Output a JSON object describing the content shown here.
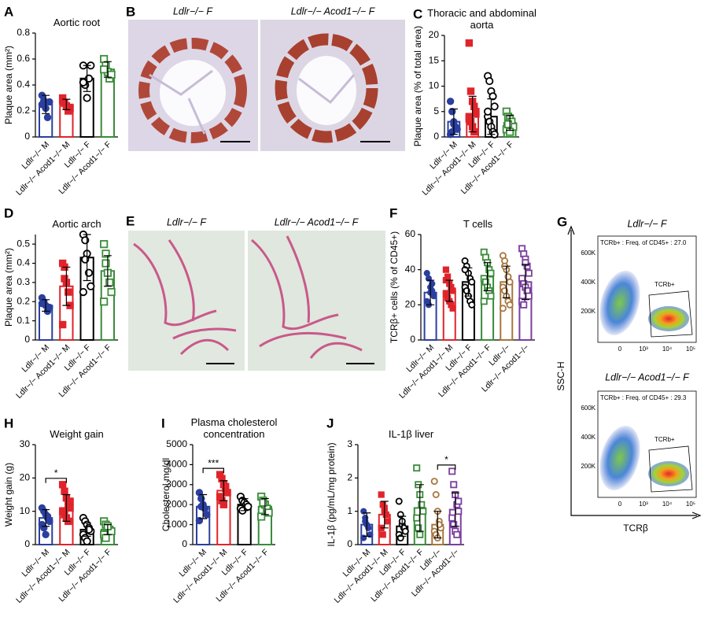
{
  "chart_data": [
    {
      "type": "bar",
      "panel": "A",
      "title": "Aortic root",
      "ylabel": "Plaque area (mm²)",
      "categories": [
        "Ldlr−/− M",
        "Ldlr−/− Acod1−/− M",
        "Ldlr−/− F",
        "Ldlr−/− Acod1−/− F"
      ],
      "colors": [
        "#2b3f9e",
        "#e0242b",
        "#000000",
        "#3a8c3a"
      ],
      "markers": [
        "filled-circle",
        "filled-square",
        "open-circle",
        "open-square"
      ],
      "values": [
        0.25,
        0.25,
        0.45,
        0.52
      ],
      "errors": [
        0.07,
        0.04,
        0.1,
        0.06
      ],
      "points": [
        [
          0.32,
          0.28,
          0.22,
          0.15,
          0.27,
          0.25
        ],
        [
          0.3,
          0.26,
          0.24,
          0.2,
          0.22,
          0.28
        ],
        [
          0.55,
          0.4,
          0.3,
          0.45,
          0.55,
          0.42
        ],
        [
          0.6,
          0.55,
          0.5,
          0.45,
          0.48,
          0.52
        ]
      ],
      "ylim": [
        0,
        0.8
      ],
      "yticks": [
        0.0,
        0.2,
        0.4,
        0.6,
        0.8
      ]
    },
    {
      "type": "bar",
      "panel": "C",
      "title": "Thoracic and abdominal aorta",
      "ylabel": "Plaque area (% of total area)",
      "categories": [
        "Ldlr−/− M",
        "Ldlr−/− Acod1−/− M",
        "Ldlr−/− F",
        "Ldlr−/− Acod1−/− F"
      ],
      "colors": [
        "#2b3f9e",
        "#e0242b",
        "#000000",
        "#3a8c3a"
      ],
      "markers": [
        "filled-circle",
        "filled-square",
        "open-circle",
        "open-square"
      ],
      "values": [
        3,
        4.5,
        4,
        2.8
      ],
      "errors": [
        2.5,
        3.5,
        3.5,
        1.5
      ],
      "points": [
        [
          7,
          5,
          3,
          2,
          1.5,
          0.5,
          1,
          2.5
        ],
        [
          18.5,
          9,
          7,
          6,
          5,
          4,
          3,
          2,
          1,
          4.5,
          3.5
        ],
        [
          12,
          11,
          9,
          8,
          6,
          4,
          3,
          2,
          1,
          0.5,
          5
        ],
        [
          5,
          4,
          3.5,
          3,
          2,
          1.5,
          2.5,
          1
        ]
      ],
      "ylim": [
        0,
        20
      ],
      "yticks": [
        0,
        5,
        10,
        15,
        20
      ]
    },
    {
      "type": "bar",
      "panel": "D",
      "title": "Aortic arch",
      "ylabel": "Plaque area (mm²)",
      "categories": [
        "Ldlr−/− M",
        "Ldlr−/− Acod1−/− M",
        "Ldlr−/− F",
        "Ldlr−/− Acod1−/− F"
      ],
      "colors": [
        "#2b3f9e",
        "#e0242b",
        "#000000",
        "#3a8c3a"
      ],
      "markers": [
        "filled-circle",
        "filled-square",
        "open-circle",
        "open-square"
      ],
      "values": [
        0.18,
        0.28,
        0.43,
        0.36
      ],
      "errors": [
        0.03,
        0.1,
        0.12,
        0.08
      ],
      "points": [
        [
          0.22,
          0.2,
          0.18,
          0.15,
          0.17,
          0.19
        ],
        [
          0.4,
          0.38,
          0.3,
          0.25,
          0.18,
          0.08,
          0.32
        ],
        [
          0.55,
          0.52,
          0.45,
          0.35,
          0.28,
          0.25,
          0.42
        ],
        [
          0.5,
          0.45,
          0.35,
          0.3,
          0.25,
          0.2,
          0.4
        ]
      ],
      "ylim": [
        0,
        0.55
      ],
      "yticks": [
        0.0,
        0.1,
        0.2,
        0.3,
        0.4,
        0.5
      ]
    },
    {
      "type": "bar",
      "panel": "F",
      "title": "T cells",
      "ylabel": "TCRβ+ cells (% of CD45+)",
      "categories": [
        "Ldlr−/− M",
        "Ldlr−/− Acod1−/− M",
        "Ldlr−/− F",
        "Ldlr−/− Acod1−/− F",
        "Ldlr−/−",
        "Ldlr−/− Acod1−/−"
      ],
      "colors": [
        "#2b3f9e",
        "#e0242b",
        "#000000",
        "#3a8c3a",
        "#a8763e",
        "#7b3fa0"
      ],
      "markers": [
        "filled-circle",
        "filled-square",
        "open-circle",
        "open-square",
        "open-circle",
        "open-square"
      ],
      "values": [
        27,
        28,
        33,
        36,
        33,
        33
      ],
      "errors": [
        7,
        6,
        8,
        8,
        9,
        10
      ],
      "points": [
        [
          38,
          35,
          30,
          28,
          25,
          22,
          20,
          27,
          32
        ],
        [
          40,
          36,
          32,
          30,
          28,
          26,
          24,
          22,
          20,
          18,
          34
        ],
        [
          45,
          42,
          38,
          35,
          33,
          30,
          28,
          25,
          22,
          20,
          40
        ],
        [
          50,
          47,
          44,
          40,
          38,
          35,
          33,
          30,
          28,
          25,
          22
        ],
        [
          48,
          45,
          40,
          36,
          33,
          30,
          28,
          25,
          22,
          20,
          18,
          42
        ],
        [
          52,
          49,
          46,
          42,
          38,
          35,
          32,
          30,
          28,
          25,
          22,
          20,
          44
        ]
      ],
      "ylim": [
        0,
        60
      ],
      "yticks": [
        0,
        20,
        40,
        60
      ]
    },
    {
      "type": "bar",
      "panel": "H",
      "title": "Weight gain",
      "ylabel": "Weight gain (g)",
      "categories": [
        "Ldlr−/− M",
        "Ldlr−/− Acod1−/− M",
        "Ldlr−/− F",
        "Ldlr−/− Acod1−/− F"
      ],
      "colors": [
        "#2b3f9e",
        "#e0242b",
        "#000000",
        "#3a8c3a"
      ],
      "markers": [
        "filled-circle",
        "filled-square",
        "open-circle",
        "open-square"
      ],
      "values": [
        8,
        11,
        4.5,
        4.5
      ],
      "errors": [
        2.5,
        4,
        2,
        1.5
      ],
      "points": [
        [
          11,
          10,
          9,
          8,
          7,
          6,
          5,
          3,
          8.5
        ],
        [
          18,
          16,
          14,
          12,
          11,
          10,
          9,
          8,
          7,
          13
        ],
        [
          8,
          7,
          6,
          5,
          4,
          3,
          2,
          1,
          4.5
        ],
        [
          7,
          6,
          5,
          4.5,
          4,
          3,
          2,
          5.5
        ]
      ],
      "ylim": [
        0,
        30
      ],
      "yticks": [
        0,
        10,
        20,
        30
      ],
      "annotations": [
        {
          "text": "*",
          "between": [
            0,
            1
          ]
        }
      ]
    },
    {
      "type": "bar",
      "panel": "I",
      "title": "Plasma cholesterol concentration",
      "ylabel": "Cholesterol mg/dl",
      "categories": [
        "Ldlr−/− M",
        "Ldlr−/− Acod1−/− M",
        "Ldlr−/− F",
        "Ldlr−/− Acod1−/− F"
      ],
      "colors": [
        "#2b3f9e",
        "#e0242b",
        "#000000",
        "#3a8c3a"
      ],
      "markers": [
        "filled-circle",
        "filled-square",
        "open-circle",
        "open-square"
      ],
      "values": [
        1900,
        2700,
        2000,
        1900
      ],
      "errors": [
        600,
        500,
        300,
        400
      ],
      "points": [
        [
          2600,
          2300,
          2000,
          1800,
          1500,
          1200,
          1900
        ],
        [
          3500,
          3300,
          3000,
          2800,
          2600,
          2400,
          2200,
          2000,
          2900
        ],
        [
          2400,
          2200,
          2100,
          2000,
          1900,
          1800,
          1700
        ],
        [
          2400,
          2200,
          2000,
          1800,
          1600,
          1400,
          2100
        ]
      ],
      "ylim": [
        0,
        5000
      ],
      "yticks": [
        0,
        1000,
        2000,
        3000,
        4000,
        5000
      ],
      "annotations": [
        {
          "text": "***",
          "between": [
            0,
            1
          ]
        }
      ]
    },
    {
      "type": "bar",
      "panel": "J",
      "title": "IL-1β liver",
      "ylabel": "IL-1β (pg/mL/mg protein)",
      "categories": [
        "Ldlr−/− M",
        "Ldlr−/− Acod1−/− M",
        "Ldlr−/− F",
        "Ldlr−/− Acod1−/− F",
        "Ldlr−/−",
        "Ldlr−/− Acod1−/−"
      ],
      "colors": [
        "#2b3f9e",
        "#e0242b",
        "#000000",
        "#3a8c3a",
        "#a8763e",
        "#7b3fa0"
      ],
      "markers": [
        "filled-circle",
        "filled-square",
        "open-circle",
        "open-square",
        "open-circle",
        "open-square"
      ],
      "values": [
        0.6,
        0.9,
        0.55,
        1.1,
        0.6,
        1.05
      ],
      "errors": [
        0.35,
        0.4,
        0.3,
        0.7,
        0.4,
        0.5
      ],
      "points": [
        [
          1.0,
          0.8,
          0.6,
          0.5,
          0.3,
          0.2,
          0.7
        ],
        [
          1.5,
          1.2,
          1.0,
          0.9,
          0.7,
          0.5,
          0.3,
          1.1
        ],
        [
          1.3,
          0.9,
          0.6,
          0.5,
          0.4,
          0.3,
          0.2,
          0.7
        ],
        [
          2.3,
          1.8,
          1.5,
          1.2,
          1.0,
          0.8,
          0.5,
          0.3
        ],
        [
          1.9,
          1.5,
          1.0,
          0.7,
          0.5,
          0.4,
          0.3,
          0.2,
          0.6
        ],
        [
          2.2,
          1.8,
          1.5,
          1.2,
          1.0,
          0.8,
          0.6,
          0.4,
          0.3,
          1.3
        ]
      ],
      "ylim": [
        0,
        3
      ],
      "yticks": [
        0,
        1,
        2,
        3
      ],
      "annotations": [
        {
          "text": "*",
          "between": [
            4,
            5
          ]
        }
      ]
    }
  ],
  "image_panels": [
    {
      "panel": "B",
      "captions": [
        "Ldlr−/− F",
        "Ldlr−/− Acod1−/− F"
      ]
    },
    {
      "panel": "E",
      "captions": [
        "Ldlr−/− F",
        "Ldlr−/− Acod1−/− F"
      ]
    }
  ],
  "flow_panel": {
    "panel": "G",
    "ylabel": "SSC-H",
    "xlabel": "TCRβ",
    "plots": [
      {
        "title": "Ldlr−/− F",
        "gate_text": "TCRb+ : Freq. of CD45+ : 27.0",
        "gate": "TCRb+"
      },
      {
        "title": "Ldlr−/− Acod1−/− F",
        "gate_text": "TCRb+ : Freq. of CD45+ : 29.3",
        "gate": "TCRb+"
      }
    ],
    "yticks": [
      "600K",
      "400K",
      "200K"
    ],
    "xticks": [
      "0",
      "10³",
      "10⁴",
      "10⁵"
    ]
  }
}
